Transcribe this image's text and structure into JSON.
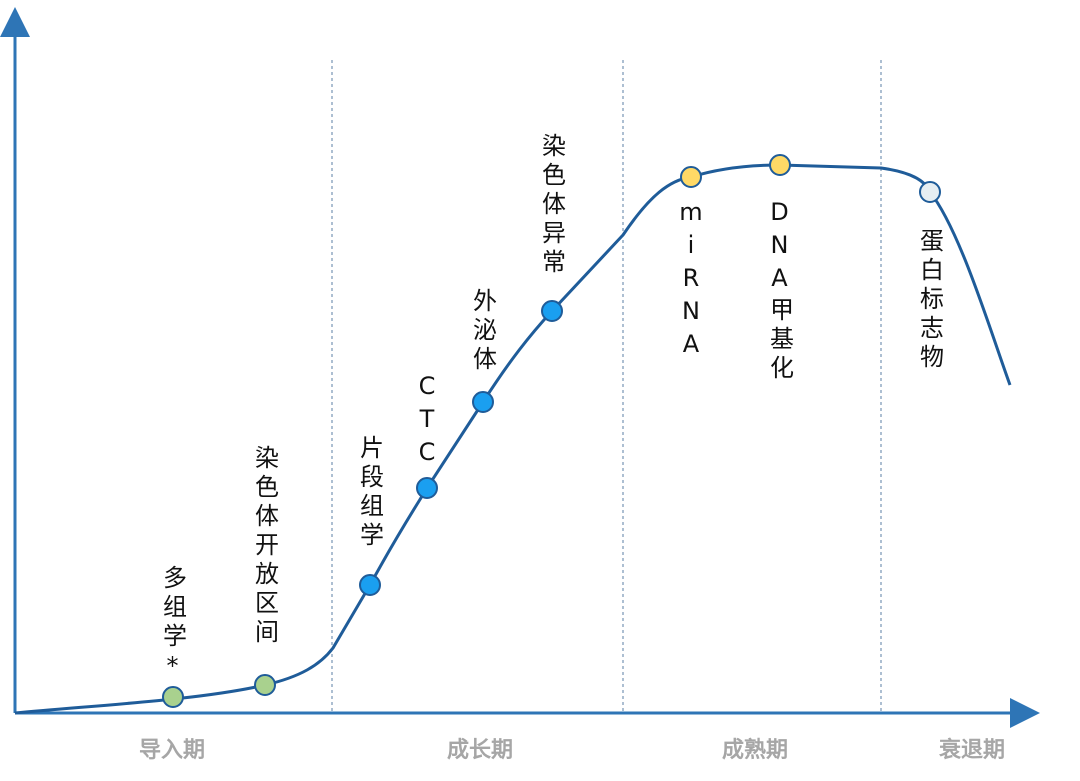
{
  "phases": [
    "导入期",
    "成长期",
    "成熟期",
    "衰退期"
  ],
  "nodes": [
    {
      "label": "多组学*",
      "color": "#a9d18e"
    },
    {
      "label": "染色体开放区间",
      "color": "#a9d18e"
    },
    {
      "label": "片段组学",
      "color": "#1a9ff0"
    },
    {
      "label": "CTC",
      "color": "#1a9ff0"
    },
    {
      "label": "外泌体",
      "color": "#1a9ff0"
    },
    {
      "label": "染色体异常",
      "color": "#1a9ff0"
    },
    {
      "label": "miRNA",
      "color": "#ffd966"
    },
    {
      "label": "DNA甲基化",
      "color": "#ffd966"
    },
    {
      "label": "蛋白标志物",
      "color": "#e6eef2"
    }
  ]
}
